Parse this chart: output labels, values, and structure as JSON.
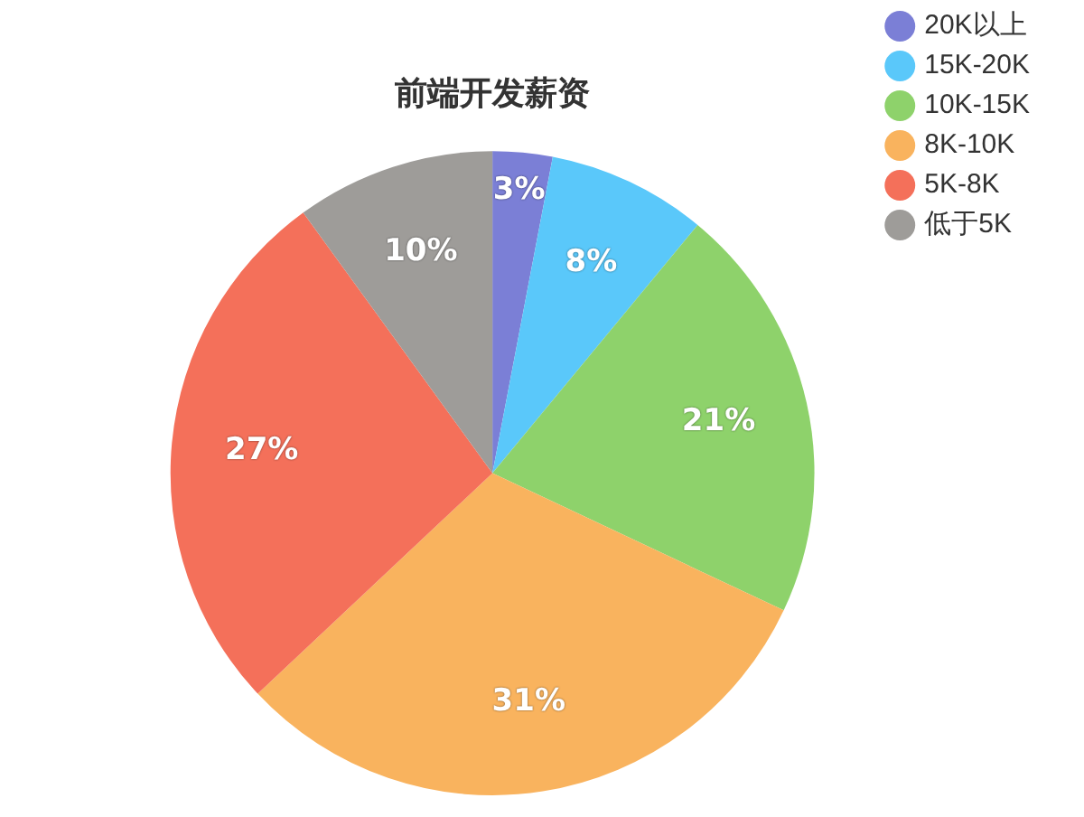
{
  "chart_data": {
    "type": "pie",
    "title": "前端开发薪资",
    "categories": [
      "20K以上",
      "15K-20K",
      "10K-15K",
      "8K-10K",
      "5K-8K",
      "低于5K"
    ],
    "values": [
      3,
      8,
      21,
      31,
      27,
      10
    ],
    "value_labels": [
      "3%",
      "8%",
      "21%",
      "31%",
      "27%",
      "10%"
    ],
    "colors": [
      "#7b7fd6",
      "#5ac8fa",
      "#8ed26b",
      "#f9b35e",
      "#f4705a",
      "#9e9c99"
    ],
    "legend": "top right"
  }
}
